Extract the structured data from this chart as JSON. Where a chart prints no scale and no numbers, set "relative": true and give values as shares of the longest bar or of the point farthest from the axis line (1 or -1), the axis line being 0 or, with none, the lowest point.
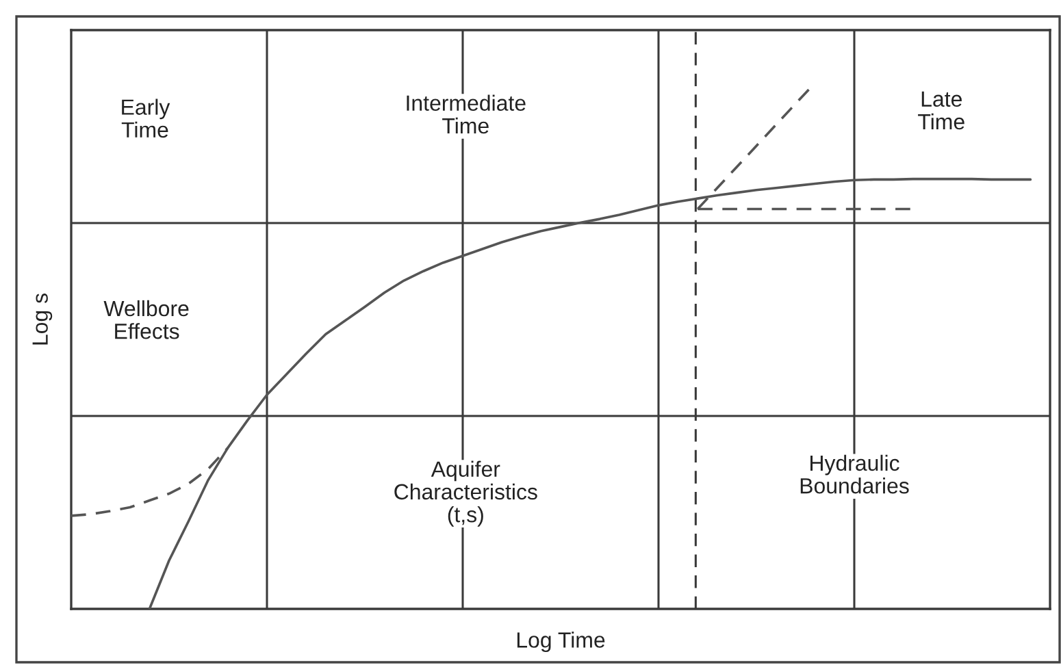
{
  "chart_data": {
    "type": "line",
    "relative": true,
    "grid": true,
    "xlabel": "Log Time",
    "ylabel": "Log s",
    "categories": [
      null,
      null,
      null,
      null,
      null,
      null,
      null,
      null,
      null,
      null,
      null,
      null,
      null,
      null,
      null,
      null,
      null,
      null,
      null,
      null,
      null,
      null,
      null,
      null,
      null,
      null,
      null,
      null,
      null,
      null,
      null,
      null,
      null,
      null,
      null,
      null,
      null,
      null,
      null,
      null,
      null,
      null,
      null,
      null,
      null,
      null,
      null,
      null,
      null,
      null,
      null
    ],
    "series": [
      {
        "color": "#555555",
        "line_style": "solid",
        "values": [
          null,
          null,
          null,
          null,
          0,
          0.092,
          0.167,
          0.245,
          0.306,
          0.358,
          0.407,
          0.446,
          0.485,
          0.522,
          0.548,
          0.574,
          0.601,
          0.624,
          0.642,
          0.658,
          0.671,
          0.684,
          0.697,
          0.708,
          0.718,
          0.726,
          0.734,
          0.741,
          0.749,
          0.758,
          0.767,
          0.774,
          0.78,
          0.786,
          0.791,
          0.796,
          0.8,
          0.804,
          0.808,
          0.812,
          0.815,
          0.816,
          0.816,
          0.817,
          0.817,
          0.817,
          0.817,
          0.816,
          0.816,
          0.816,
          null
        ]
      },
      {
        "color": "#555555",
        "line_style": "dashed",
        "values": [
          0.177,
          0.18,
          0.186,
          0.193,
          0.206,
          0.219,
          0.238,
          0.266,
          0.306,
          null,
          null,
          null,
          null,
          null,
          null,
          null,
          null,
          null,
          null,
          null,
          null,
          null,
          null,
          null,
          null,
          null,
          null,
          null,
          null,
          null,
          null,
          null,
          null,
          null,
          null,
          null,
          null,
          null,
          null,
          null,
          null,
          null,
          null,
          null,
          null,
          null,
          null,
          null,
          null,
          null,
          null
        ]
      },
      {
        "color": "#555555",
        "line_style": "dashed",
        "values": [
          null,
          null,
          null,
          null,
          null,
          null,
          null,
          null,
          null,
          null,
          null,
          null,
          null,
          null,
          null,
          null,
          null,
          null,
          null,
          null,
          null,
          null,
          null,
          null,
          null,
          null,
          null,
          null,
          null,
          null,
          null,
          null,
          0.76,
          0.8,
          0.84,
          0.88,
          0.92,
          0.96,
          1.0,
          null,
          null,
          null,
          null,
          null,
          null,
          null,
          null,
          null,
          null,
          null,
          null
        ]
      },
      {
        "color": "#555555",
        "line_style": "dashed",
        "values": [
          null,
          null,
          null,
          null,
          null,
          null,
          null,
          null,
          null,
          null,
          null,
          null,
          null,
          null,
          null,
          null,
          null,
          null,
          null,
          null,
          null,
          null,
          null,
          null,
          null,
          null,
          null,
          null,
          null,
          null,
          null,
          null,
          0.76,
          0.76,
          0.76,
          0.76,
          0.76,
          0.76,
          0.76,
          0.76,
          0.76,
          0.76,
          0.76,
          0.76,
          null,
          null,
          null,
          null,
          null,
          null,
          null
        ]
      }
    ],
    "annotations": [
      "Early\nTime",
      "Intermediate\nTime",
      "Late\nTime",
      "Wellbore\nEffects",
      "Aquifer\nCharacteristics\n(t,s)",
      "Hydraulic\nBoundaries"
    ]
  }
}
